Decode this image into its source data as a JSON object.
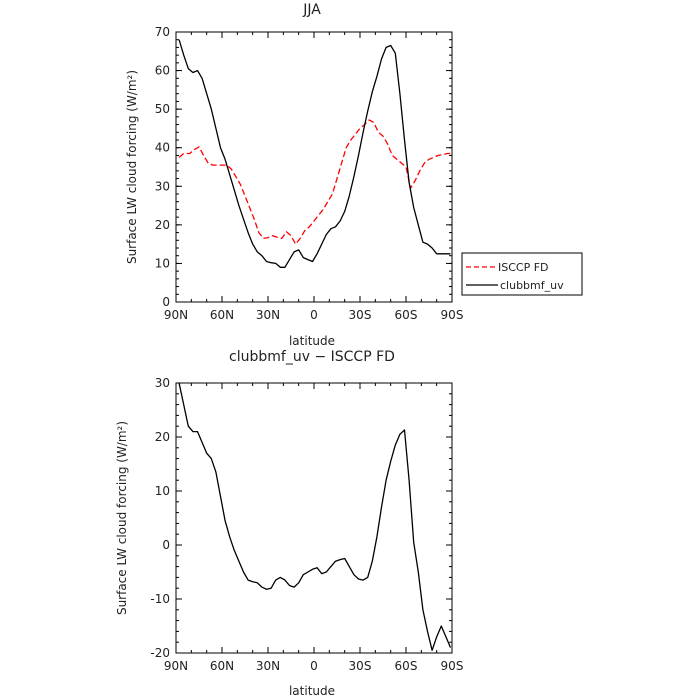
{
  "chart_data": [
    {
      "type": "line",
      "title": "JJA",
      "xlabel": "latitude",
      "ylabel": "Surface LW cloud forcing (W/m²)",
      "ylim": [
        0,
        70
      ],
      "y_ticks": [
        0,
        10,
        20,
        30,
        40,
        50,
        60,
        70
      ],
      "x_ticks": [
        "90N",
        "60N",
        "30N",
        "0",
        "30S",
        "60S",
        "90S"
      ],
      "legend_position": "right",
      "series": [
        {
          "name": "ISCCP FD",
          "color": "#ff0000",
          "dash": "dashed",
          "x": [
            -88,
            -85,
            -81,
            -78,
            -75,
            -72,
            -69,
            -66,
            -63,
            -60,
            -57,
            -54,
            -51,
            -48,
            -45,
            -42,
            -39,
            -36,
            -33,
            -30,
            -27,
            -24,
            -21,
            -18,
            -15,
            -12,
            -9,
            -6,
            -3,
            0,
            3,
            6,
            9,
            12,
            15,
            18,
            21,
            24,
            27,
            30,
            33,
            36,
            39,
            42,
            45,
            48,
            51,
            54,
            57,
            60,
            63,
            66,
            69,
            72,
            75,
            78,
            81,
            84,
            87,
            90
          ],
          "y": [
            37.5,
            38.5,
            38.5,
            39.5,
            40.2,
            38,
            36,
            35.5,
            35.5,
            35.5,
            35.5,
            34.5,
            32.5,
            30.5,
            27.5,
            24.5,
            21.5,
            18,
            16.5,
            16.7,
            17.2,
            16.8,
            16.5,
            18.2,
            17.2,
            15,
            16.5,
            18.5,
            19.5,
            21,
            22.5,
            24,
            26,
            28,
            32,
            36,
            40,
            42,
            43.5,
            45,
            46,
            47.2,
            46.5,
            44,
            43,
            41,
            38,
            37,
            36,
            35,
            29.5,
            31.5,
            34,
            36,
            37,
            37.5,
            38,
            38.2,
            38.5,
            38.5
          ]
        },
        {
          "name": "clubbmf_uv",
          "color": "#000000",
          "dash": "solid",
          "x": [
            -88,
            -85,
            -82,
            -79,
            -76,
            -73,
            -70,
            -67,
            -64,
            -61,
            -58,
            -55,
            -52,
            -49,
            -46,
            -43,
            -40,
            -37,
            -34,
            -31,
            -28,
            -25,
            -22,
            -19,
            -16,
            -13,
            -10,
            -7,
            -4,
            -1,
            2,
            5,
            8,
            11,
            14,
            17,
            20,
            23,
            26,
            29,
            32,
            35,
            38,
            41,
            44,
            47,
            50,
            53,
            56,
            59,
            62,
            65,
            68,
            71,
            74,
            77,
            80,
            83,
            86,
            89
          ],
          "y": [
            68,
            64,
            60.5,
            59.5,
            60,
            58,
            54,
            50,
            45,
            40,
            37,
            33,
            29,
            25,
            21.5,
            18,
            15,
            13,
            12,
            10.5,
            10.2,
            10,
            9,
            9,
            11,
            13,
            13.5,
            11.5,
            11,
            10.5,
            12.5,
            15,
            17.5,
            19,
            19.5,
            21,
            23.5,
            27.5,
            32.5,
            38,
            44,
            49.5,
            54.5,
            58.5,
            63,
            66,
            66.5,
            64.5,
            54,
            42,
            31,
            24.5,
            20,
            15.5,
            15,
            14,
            12.5,
            12.5,
            12.5,
            12.5
          ]
        }
      ]
    },
    {
      "type": "line",
      "title": "clubbmf_uv − ISCCP FD",
      "xlabel": "latitude",
      "ylabel": "Surface LW cloud forcing (W/m²)",
      "ylim": [
        -20,
        30
      ],
      "y_ticks": [
        -20,
        -10,
        0,
        10,
        20,
        30
      ],
      "x_ticks": [
        "90N",
        "60N",
        "30N",
        "0",
        "30S",
        "60S",
        "90S"
      ],
      "series": [
        {
          "color": "#000000",
          "dash": "solid",
          "x": [
            -88,
            -85,
            -82,
            -79,
            -76,
            -73,
            -70,
            -67,
            -64,
            -61,
            -58,
            -55,
            -52,
            -49,
            -46,
            -43,
            -40,
            -37,
            -34,
            -31,
            -28,
            -25,
            -22,
            -19,
            -16,
            -13,
            -10,
            -7,
            -4,
            -1,
            2,
            5,
            8,
            11,
            14,
            17,
            20,
            23,
            26,
            29,
            32,
            35,
            38,
            41,
            44,
            47,
            50,
            53,
            56,
            59,
            62,
            65,
            68,
            71,
            74,
            77,
            80,
            83,
            86,
            89
          ],
          "y": [
            30,
            26,
            22,
            21,
            21,
            19,
            17,
            16,
            13.5,
            9,
            4.5,
            1.5,
            -1,
            -3,
            -5,
            -6.5,
            -6.8,
            -7,
            -7.8,
            -8.2,
            -8,
            -6.5,
            -6,
            -6.5,
            -7.5,
            -7.8,
            -7,
            -5.5,
            -5,
            -4.5,
            -4.2,
            -5.3,
            -5,
            -4,
            -3,
            -2.7,
            -2.5,
            -4,
            -5.5,
            -6.3,
            -6.5,
            -6,
            -3,
            1.5,
            7,
            12,
            15.5,
            18.5,
            20.5,
            21.3,
            12,
            0.5,
            -5,
            -12,
            -16,
            -19.5,
            -17,
            -15,
            -17,
            -19
          ]
        }
      ]
    }
  ]
}
